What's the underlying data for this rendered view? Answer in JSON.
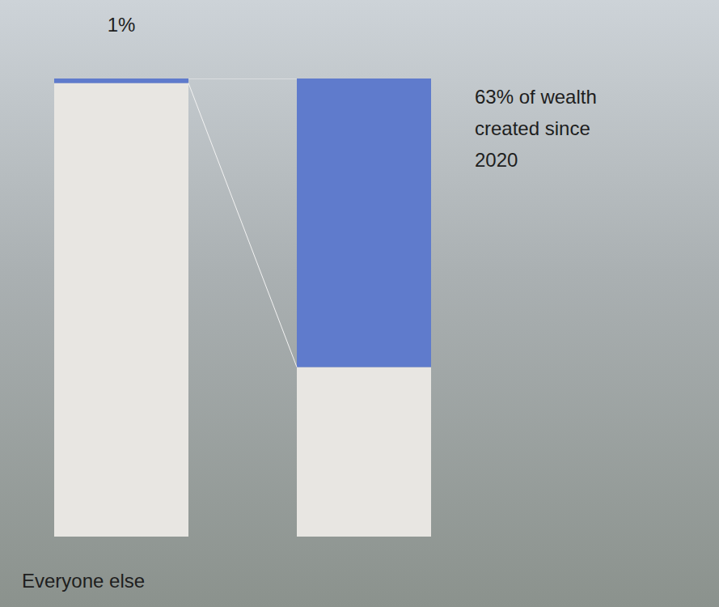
{
  "chart_data": {
    "type": "bar",
    "stacked": true,
    "categories": [
      null,
      null
    ],
    "series": [
      {
        "name": "Everyone else",
        "color": "#e8e6e2",
        "values": [
          99,
          37
        ]
      },
      {
        "name": "1%",
        "color": "#5f7bcc",
        "values": [
          1,
          63
        ]
      }
    ],
    "ylim": [
      0,
      100
    ],
    "tick_labels": false,
    "annotations": [
      "63% of wealth created since 2020"
    ]
  }
}
